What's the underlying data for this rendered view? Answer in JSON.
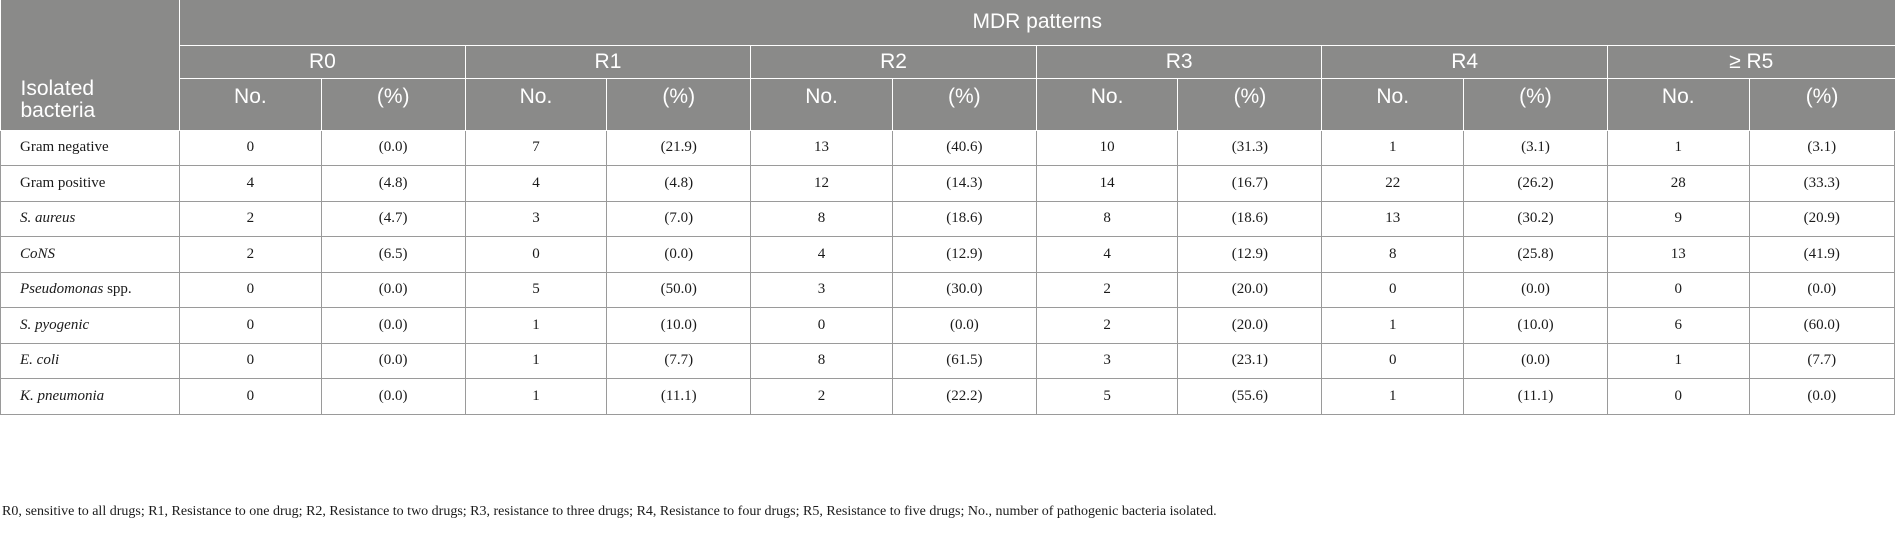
{
  "table": {
    "group_header": "MDR patterns",
    "row_header": "Isolated bacteria",
    "patterns": [
      "R0",
      "R1",
      "R2",
      "R3",
      "R4",
      "≥ R5"
    ],
    "sub_headers": {
      "no": "No.",
      "pct": "(%)"
    },
    "rows": [
      {
        "name": "Gram negative",
        "italic": false,
        "suffix": "",
        "values": [
          "0",
          "(0.0)",
          "7",
          "(21.9)",
          "13",
          "(40.6)",
          "10",
          "(31.3)",
          "1",
          "(3.1)",
          "1",
          "(3.1)"
        ]
      },
      {
        "name": "Gram positive",
        "italic": false,
        "suffix": "",
        "values": [
          "4",
          "(4.8)",
          "4",
          "(4.8)",
          "12",
          "(14.3)",
          "14",
          "(16.7)",
          "22",
          "(26.2)",
          "28",
          "(33.3)"
        ]
      },
      {
        "name": "S. aureus",
        "italic": true,
        "suffix": "",
        "values": [
          "2",
          "(4.7)",
          "3",
          "(7.0)",
          "8",
          "(18.6)",
          "8",
          "(18.6)",
          "13",
          "(30.2)",
          "9",
          "(20.9)"
        ]
      },
      {
        "name": "CoNS",
        "italic": true,
        "suffix": "",
        "values": [
          "2",
          "(6.5)",
          "0",
          "(0.0)",
          "4",
          "(12.9)",
          "4",
          "(12.9)",
          "8",
          "(25.8)",
          "13",
          "(41.9)"
        ]
      },
      {
        "name": "Pseudomonas",
        "italic": true,
        "suffix": " spp.",
        "values": [
          "0",
          "(0.0)",
          "5",
          "(50.0)",
          "3",
          "(30.0)",
          "2",
          "(20.0)",
          "0",
          "(0.0)",
          "0",
          "(0.0)"
        ]
      },
      {
        "name": "S. pyogenic",
        "italic": true,
        "suffix": "",
        "values": [
          "0",
          "(0.0)",
          "1",
          "(10.0)",
          "0",
          "(0.0)",
          "2",
          "(20.0)",
          "1",
          "(10.0)",
          "6",
          "(60.0)"
        ]
      },
      {
        "name": "E. coli",
        "italic": true,
        "suffix": "",
        "values": [
          "0",
          "(0.0)",
          "1",
          "(7.7)",
          "8",
          "(61.5)",
          "3",
          "(23.1)",
          "0",
          "(0.0)",
          "1",
          "(7.7)"
        ]
      },
      {
        "name": "K. pneumonia",
        "italic": true,
        "suffix": "",
        "values": [
          "0",
          "(0.0)",
          "1",
          "(11.1)",
          "2",
          "(22.2)",
          "5",
          "(55.6)",
          "1",
          "(11.1)",
          "0",
          "(0.0)"
        ]
      }
    ]
  },
  "footnote": "R0, sensitive to all drugs; R1, Resistance to one drug; R2, Resistance to two drugs; R3, resistance to three drugs; R4, Resistance to four drugs; R5, Resistance to five drugs; No., number of pathogenic bacteria isolated.",
  "colors": {
    "header_bg": "#8a8a89",
    "header_text": "#ffffff",
    "grid": "#9a9a9a"
  }
}
